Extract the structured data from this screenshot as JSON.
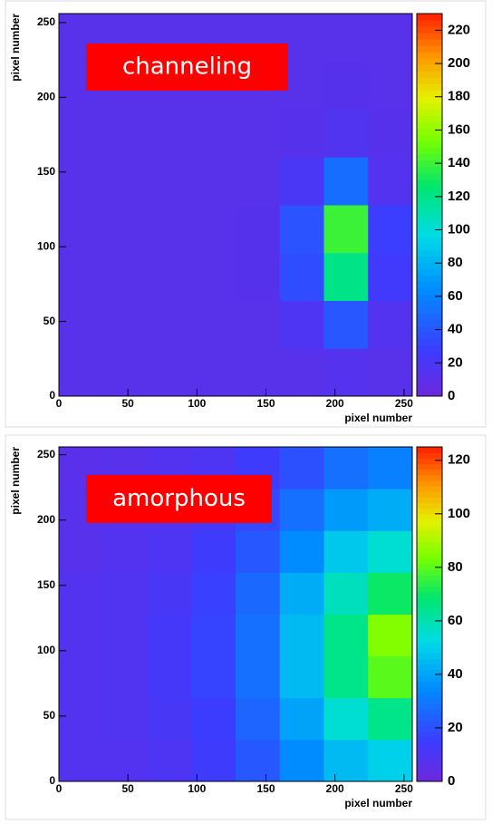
{
  "chart_data": [
    {
      "type": "heatmap",
      "annotation": "channeling",
      "xlabel": "pixel number",
      "ylabel": "pixel number",
      "xlim": [
        0,
        256
      ],
      "ylim": [
        0,
        256
      ],
      "xticks": [
        0,
        50,
        100,
        150,
        200,
        250
      ],
      "yticks": [
        0,
        50,
        100,
        150,
        200,
        250
      ],
      "x_edges": [
        0,
        32,
        64,
        96,
        128,
        160,
        192,
        224,
        256
      ],
      "y_edges": [
        0,
        32,
        64,
        96,
        128,
        160,
        192,
        224,
        256
      ],
      "z": [
        [
          12,
          12,
          12,
          12,
          12,
          12,
          14,
          12
        ],
        [
          12,
          12,
          12,
          12,
          12,
          18,
          40,
          15
        ],
        [
          12,
          12,
          12,
          12,
          13,
          35,
          120,
          25
        ],
        [
          12,
          12,
          12,
          12,
          13,
          38,
          140,
          28
        ],
        [
          12,
          12,
          12,
          12,
          12,
          20,
          50,
          15
        ],
        [
          12,
          12,
          12,
          12,
          12,
          13,
          16,
          13
        ],
        [
          12,
          12,
          12,
          12,
          12,
          12,
          13,
          12
        ],
        [
          12,
          12,
          12,
          12,
          12,
          12,
          12,
          12
        ]
      ],
      "zlim": [
        0,
        230
      ],
      "zticks": [
        0,
        20,
        40,
        60,
        80,
        100,
        120,
        140,
        160,
        180,
        200,
        220
      ]
    },
    {
      "type": "heatmap",
      "annotation": "amorphous",
      "xlabel": "pixel number",
      "ylabel": "pixel number",
      "xlim": [
        0,
        256
      ],
      "ylim": [
        0,
        256
      ],
      "xticks": [
        0,
        50,
        100,
        150,
        200,
        250
      ],
      "yticks": [
        0,
        50,
        100,
        150,
        200,
        250
      ],
      "x_edges": [
        0,
        32,
        64,
        96,
        128,
        160,
        192,
        224,
        256
      ],
      "y_edges": [
        0,
        32,
        64,
        96,
        128,
        160,
        192,
        224,
        256
      ],
      "z": [
        [
          8,
          8,
          10,
          14,
          22,
          35,
          45,
          50
        ],
        [
          8,
          9,
          11,
          15,
          25,
          40,
          55,
          65
        ],
        [
          8,
          9,
          12,
          17,
          28,
          45,
          65,
          80
        ],
        [
          8,
          9,
          12,
          17,
          28,
          45,
          65,
          85
        ],
        [
          8,
          9,
          11,
          16,
          26,
          42,
          58,
          70
        ],
        [
          7,
          8,
          10,
          14,
          22,
          35,
          48,
          55
        ],
        [
          7,
          8,
          9,
          12,
          18,
          28,
          38,
          42
        ],
        [
          6,
          7,
          8,
          10,
          14,
          20,
          28,
          32
        ]
      ],
      "zlim": [
        0,
        125
      ],
      "zticks": [
        0,
        20,
        40,
        60,
        80,
        100,
        120
      ]
    }
  ]
}
